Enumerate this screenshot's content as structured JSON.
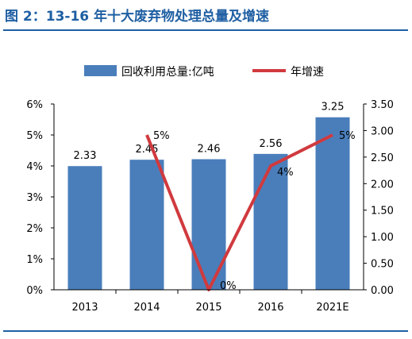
{
  "figure": {
    "title": "图 2：13-16 年十大废弃物处理总量及增速"
  },
  "colors": {
    "title": "#1f5fa3",
    "bar": "#4a7ebb",
    "line": "#d03a3e",
    "axis": "#000000"
  },
  "chart_data": {
    "type": "bar",
    "categories": [
      "2013",
      "2014",
      "2015",
      "2016",
      "2021E"
    ],
    "series": [
      {
        "name": "回收利用总量:亿吨",
        "type": "bar",
        "axis": "right",
        "values": [
          2.33,
          2.45,
          2.46,
          2.56,
          3.25
        ],
        "labels": [
          "2.33",
          "2.45",
          "2.46",
          "2.56",
          "3.25"
        ]
      },
      {
        "name": "年增速",
        "type": "line",
        "axis": "left",
        "values": [
          null,
          5,
          0,
          4,
          5
        ],
        "labels": [
          "",
          "5%",
          "0%",
          "4%",
          "5%"
        ]
      }
    ],
    "y_left": {
      "range": [
        0,
        6
      ],
      "ticks": [
        "0%",
        "1%",
        "2%",
        "3%",
        "4%",
        "5%",
        "6%"
      ]
    },
    "y_right": {
      "range": [
        0,
        3.5
      ],
      "ticks": [
        "0.00",
        "0.50",
        "1.00",
        "1.50",
        "2.00",
        "2.50",
        "3.00",
        "3.50"
      ]
    },
    "legend_position": "top",
    "grid": false
  }
}
